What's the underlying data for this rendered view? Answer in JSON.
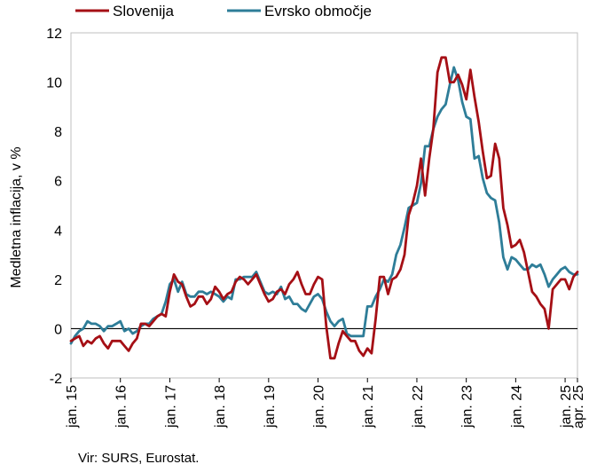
{
  "chart_data": {
    "type": "line",
    "title": "",
    "ylabel": "Medletna inflacija, v %",
    "xlabel": "",
    "ylim": [
      -2,
      12
    ],
    "yticks": [
      -2,
      0,
      2,
      4,
      6,
      8,
      10,
      12
    ],
    "xlim": [
      "2015-01",
      "2025-04"
    ],
    "xtick_labels": [
      "jan. 15",
      "jan. 16",
      "jan. 17",
      "jan. 18",
      "jan. 19",
      "jan. 20",
      "jan. 21",
      "jan. 22",
      "jan. 23",
      "jan. 24",
      "jan. 25",
      "apr. 25"
    ],
    "xtick_dates": [
      "2015-01",
      "2016-01",
      "2017-01",
      "2018-01",
      "2019-01",
      "2020-01",
      "2021-01",
      "2022-01",
      "2023-01",
      "2024-01",
      "2025-01",
      "2025-04"
    ],
    "zero_line": true,
    "grid": false,
    "legend_position": "top",
    "series": [
      {
        "name": "Slovenija",
        "color": "#a50f15",
        "points": [
          [
            "2015-01",
            -0.5
          ],
          [
            "2015-02",
            -0.4
          ],
          [
            "2015-03",
            -0.3
          ],
          [
            "2015-04",
            -0.7
          ],
          [
            "2015-05",
            -0.5
          ],
          [
            "2015-06",
            -0.6
          ],
          [
            "2015-07",
            -0.4
          ],
          [
            "2015-08",
            -0.3
          ],
          [
            "2015-09",
            -0.6
          ],
          [
            "2015-10",
            -0.8
          ],
          [
            "2015-11",
            -0.5
          ],
          [
            "2015-12",
            -0.5
          ],
          [
            "2016-01",
            -0.5
          ],
          [
            "2016-02",
            -0.7
          ],
          [
            "2016-03",
            -0.9
          ],
          [
            "2016-04",
            -0.6
          ],
          [
            "2016-05",
            -0.4
          ],
          [
            "2016-06",
            0.2
          ],
          [
            "2016-07",
            0.2
          ],
          [
            "2016-08",
            0.1
          ],
          [
            "2016-09",
            0.3
          ],
          [
            "2016-10",
            0.5
          ],
          [
            "2016-11",
            0.6
          ],
          [
            "2016-12",
            0.5
          ],
          [
            "2017-01",
            1.5
          ],
          [
            "2017-02",
            2.2
          ],
          [
            "2017-03",
            1.9
          ],
          [
            "2017-04",
            1.8
          ],
          [
            "2017-05",
            1.3
          ],
          [
            "2017-06",
            0.9
          ],
          [
            "2017-07",
            1.0
          ],
          [
            "2017-08",
            1.3
          ],
          [
            "2017-09",
            1.3
          ],
          [
            "2017-10",
            1.0
          ],
          [
            "2017-11",
            1.2
          ],
          [
            "2017-12",
            1.7
          ],
          [
            "2018-01",
            1.5
          ],
          [
            "2018-02",
            1.2
          ],
          [
            "2018-03",
            1.4
          ],
          [
            "2018-04",
            1.5
          ],
          [
            "2018-05",
            1.9
          ],
          [
            "2018-06",
            2.1
          ],
          [
            "2018-07",
            2.0
          ],
          [
            "2018-08",
            1.8
          ],
          [
            "2018-09",
            2.0
          ],
          [
            "2018-10",
            2.2
          ],
          [
            "2018-11",
            1.8
          ],
          [
            "2018-12",
            1.4
          ],
          [
            "2019-01",
            1.1
          ],
          [
            "2019-02",
            1.2
          ],
          [
            "2019-03",
            1.5
          ],
          [
            "2019-04",
            1.6
          ],
          [
            "2019-05",
            1.4
          ],
          [
            "2019-06",
            1.8
          ],
          [
            "2019-07",
            2.0
          ],
          [
            "2019-08",
            2.3
          ],
          [
            "2019-09",
            1.8
          ],
          [
            "2019-10",
            1.4
          ],
          [
            "2019-11",
            1.4
          ],
          [
            "2019-12",
            1.8
          ],
          [
            "2020-01",
            2.1
          ],
          [
            "2020-02",
            2.0
          ],
          [
            "2020-03",
            0.1
          ],
          [
            "2020-04",
            -1.2
          ],
          [
            "2020-05",
            -1.2
          ],
          [
            "2020-06",
            -0.6
          ],
          [
            "2020-07",
            -0.1
          ],
          [
            "2020-08",
            -0.3
          ],
          [
            "2020-09",
            -0.5
          ],
          [
            "2020-10",
            -0.5
          ],
          [
            "2020-11",
            -0.9
          ],
          [
            "2020-12",
            -1.1
          ],
          [
            "2021-01",
            -0.8
          ],
          [
            "2021-02",
            -1.0
          ],
          [
            "2021-03",
            0.4
          ],
          [
            "2021-04",
            2.1
          ],
          [
            "2021-05",
            2.1
          ],
          [
            "2021-06",
            1.4
          ],
          [
            "2021-07",
            2.0
          ],
          [
            "2021-08",
            2.1
          ],
          [
            "2021-09",
            2.4
          ],
          [
            "2021-10",
            3.0
          ],
          [
            "2021-11",
            4.6
          ],
          [
            "2021-12",
            5.1
          ],
          [
            "2022-01",
            5.8
          ],
          [
            "2022-02",
            6.9
          ],
          [
            "2022-03",
            5.4
          ],
          [
            "2022-04",
            6.9
          ],
          [
            "2022-05",
            8.1
          ],
          [
            "2022-06",
            10.4
          ],
          [
            "2022-07",
            11.0
          ],
          [
            "2022-08",
            11.0
          ],
          [
            "2022-09",
            10.0
          ],
          [
            "2022-10",
            10.0
          ],
          [
            "2022-11",
            10.3
          ],
          [
            "2022-12",
            9.9
          ],
          [
            "2023-01",
            9.3
          ],
          [
            "2023-02",
            10.5
          ],
          [
            "2023-03",
            9.4
          ],
          [
            "2023-04",
            8.4
          ],
          [
            "2023-05",
            7.2
          ],
          [
            "2023-06",
            6.1
          ],
          [
            "2023-07",
            6.2
          ],
          [
            "2023-08",
            7.5
          ],
          [
            "2023-09",
            6.9
          ],
          [
            "2023-10",
            4.9
          ],
          [
            "2023-11",
            4.2
          ],
          [
            "2023-12",
            3.3
          ],
          [
            "2024-01",
            3.4
          ],
          [
            "2024-02",
            3.6
          ],
          [
            "2024-03",
            3.1
          ],
          [
            "2024-04",
            2.3
          ],
          [
            "2024-05",
            1.5
          ],
          [
            "2024-06",
            1.3
          ],
          [
            "2024-07",
            1.0
          ],
          [
            "2024-08",
            0.8
          ],
          [
            "2024-09",
            0.0
          ],
          [
            "2024-10",
            1.6
          ],
          [
            "2024-11",
            1.8
          ],
          [
            "2024-12",
            2.0
          ],
          [
            "2025-01",
            2.0
          ],
          [
            "2025-02",
            1.6
          ],
          [
            "2025-03",
            2.1
          ],
          [
            "2025-04",
            2.3
          ]
        ]
      },
      {
        "name": "Evrsko območje",
        "color": "#2e7d98",
        "points": [
          [
            "2015-01",
            -0.6
          ],
          [
            "2015-02",
            -0.3
          ],
          [
            "2015-03",
            -0.1
          ],
          [
            "2015-04",
            0.0
          ],
          [
            "2015-05",
            0.3
          ],
          [
            "2015-06",
            0.2
          ],
          [
            "2015-07",
            0.2
          ],
          [
            "2015-08",
            0.1
          ],
          [
            "2015-09",
            -0.1
          ],
          [
            "2015-10",
            0.1
          ],
          [
            "2015-11",
            0.1
          ],
          [
            "2015-12",
            0.2
          ],
          [
            "2016-01",
            0.3
          ],
          [
            "2016-02",
            -0.1
          ],
          [
            "2016-03",
            0.0
          ],
          [
            "2016-04",
            -0.2
          ],
          [
            "2016-05",
            -0.1
          ],
          [
            "2016-06",
            0.1
          ],
          [
            "2016-07",
            0.2
          ],
          [
            "2016-08",
            0.2
          ],
          [
            "2016-09",
            0.4
          ],
          [
            "2016-10",
            0.5
          ],
          [
            "2016-11",
            0.6
          ],
          [
            "2016-12",
            1.1
          ],
          [
            "2017-01",
            1.8
          ],
          [
            "2017-02",
            2.0
          ],
          [
            "2017-03",
            1.5
          ],
          [
            "2017-04",
            1.9
          ],
          [
            "2017-05",
            1.4
          ],
          [
            "2017-06",
            1.3
          ],
          [
            "2017-07",
            1.3
          ],
          [
            "2017-08",
            1.5
          ],
          [
            "2017-09",
            1.5
          ],
          [
            "2017-10",
            1.4
          ],
          [
            "2017-11",
            1.5
          ],
          [
            "2017-12",
            1.4
          ],
          [
            "2018-01",
            1.3
          ],
          [
            "2018-02",
            1.1
          ],
          [
            "2018-03",
            1.3
          ],
          [
            "2018-04",
            1.2
          ],
          [
            "2018-05",
            2.0
          ],
          [
            "2018-06",
            2.0
          ],
          [
            "2018-07",
            2.1
          ],
          [
            "2018-08",
            2.1
          ],
          [
            "2018-09",
            2.1
          ],
          [
            "2018-10",
            2.3
          ],
          [
            "2018-11",
            1.9
          ],
          [
            "2018-12",
            1.5
          ],
          [
            "2019-01",
            1.4
          ],
          [
            "2019-02",
            1.5
          ],
          [
            "2019-03",
            1.4
          ],
          [
            "2019-04",
            1.7
          ],
          [
            "2019-05",
            1.2
          ],
          [
            "2019-06",
            1.3
          ],
          [
            "2019-07",
            1.0
          ],
          [
            "2019-08",
            1.0
          ],
          [
            "2019-09",
            0.8
          ],
          [
            "2019-10",
            0.7
          ],
          [
            "2019-11",
            1.0
          ],
          [
            "2019-12",
            1.3
          ],
          [
            "2020-01",
            1.4
          ],
          [
            "2020-02",
            1.2
          ],
          [
            "2020-03",
            0.7
          ],
          [
            "2020-04",
            0.3
          ],
          [
            "2020-05",
            0.1
          ],
          [
            "2020-06",
            0.3
          ],
          [
            "2020-07",
            0.4
          ],
          [
            "2020-08",
            -0.2
          ],
          [
            "2020-09",
            -0.3
          ],
          [
            "2020-10",
            -0.3
          ],
          [
            "2020-11",
            -0.3
          ],
          [
            "2020-12",
            -0.3
          ],
          [
            "2021-01",
            0.9
          ],
          [
            "2021-02",
            0.9
          ],
          [
            "2021-03",
            1.3
          ],
          [
            "2021-04",
            1.6
          ],
          [
            "2021-05",
            2.0
          ],
          [
            "2021-06",
            1.9
          ],
          [
            "2021-07",
            2.2
          ],
          [
            "2021-08",
            3.0
          ],
          [
            "2021-09",
            3.4
          ],
          [
            "2021-10",
            4.1
          ],
          [
            "2021-11",
            4.9
          ],
          [
            "2021-12",
            5.0
          ],
          [
            "2022-01",
            5.1
          ],
          [
            "2022-02",
            5.9
          ],
          [
            "2022-03",
            7.4
          ],
          [
            "2022-04",
            7.4
          ],
          [
            "2022-05",
            8.1
          ],
          [
            "2022-06",
            8.6
          ],
          [
            "2022-07",
            8.9
          ],
          [
            "2022-08",
            9.1
          ],
          [
            "2022-09",
            9.9
          ],
          [
            "2022-10",
            10.6
          ],
          [
            "2022-11",
            10.1
          ],
          [
            "2022-12",
            9.2
          ],
          [
            "2023-01",
            8.6
          ],
          [
            "2023-02",
            8.5
          ],
          [
            "2023-03",
            6.9
          ],
          [
            "2023-04",
            7.0
          ],
          [
            "2023-05",
            6.1
          ],
          [
            "2023-06",
            5.5
          ],
          [
            "2023-07",
            5.3
          ],
          [
            "2023-08",
            5.2
          ],
          [
            "2023-09",
            4.3
          ],
          [
            "2023-10",
            2.9
          ],
          [
            "2023-11",
            2.4
          ],
          [
            "2023-12",
            2.9
          ],
          [
            "2024-01",
            2.8
          ],
          [
            "2024-02",
            2.6
          ],
          [
            "2024-03",
            2.4
          ],
          [
            "2024-04",
            2.4
          ],
          [
            "2024-05",
            2.6
          ],
          [
            "2024-06",
            2.5
          ],
          [
            "2024-07",
            2.6
          ],
          [
            "2024-08",
            2.2
          ],
          [
            "2024-09",
            1.7
          ],
          [
            "2024-10",
            2.0
          ],
          [
            "2024-11",
            2.2
          ],
          [
            "2024-12",
            2.4
          ],
          [
            "2025-01",
            2.5
          ],
          [
            "2025-02",
            2.3
          ],
          [
            "2025-03",
            2.2
          ],
          [
            "2025-04",
            2.2
          ]
        ]
      }
    ]
  },
  "source_note": "Vir: SURS, Eurostat."
}
